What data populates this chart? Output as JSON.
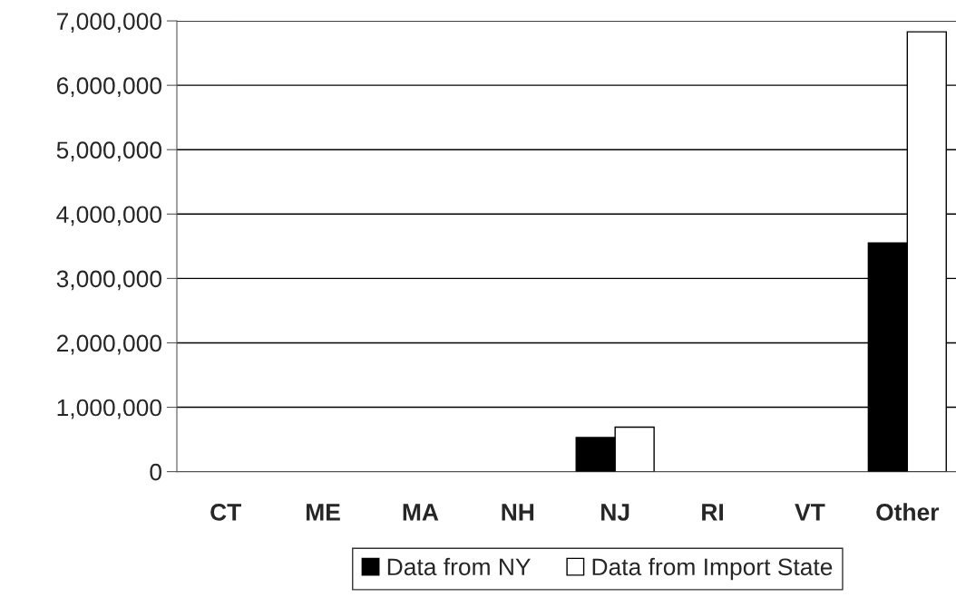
{
  "chart_data": {
    "type": "bar",
    "categories": [
      "CT",
      "ME",
      "MA",
      "NH",
      "NJ",
      "RI",
      "VT",
      "Other"
    ],
    "series": [
      {
        "name": "Data from NY",
        "color": "#000000",
        "values": [
          0,
          0,
          0,
          0,
          530000,
          0,
          0,
          3550000
        ]
      },
      {
        "name": "Data from Import State",
        "color": "#ffffff",
        "values": [
          0,
          0,
          0,
          0,
          690000,
          0,
          0,
          6830000
        ]
      }
    ],
    "ylim": [
      0,
      7000000
    ],
    "yticks": [
      {
        "value": 0,
        "label": "0"
      },
      {
        "value": 1000000,
        "label": "1,000,000"
      },
      {
        "value": 2000000,
        "label": "2,000,000"
      },
      {
        "value": 3000000,
        "label": "3,000,000"
      },
      {
        "value": 4000000,
        "label": "4,000,000"
      },
      {
        "value": 5000000,
        "label": "5,000,000"
      },
      {
        "value": 6000000,
        "label": "6,000,000"
      },
      {
        "value": 7000000,
        "label": "7,000,000"
      }
    ],
    "grid": "y",
    "legend": "bottom"
  }
}
